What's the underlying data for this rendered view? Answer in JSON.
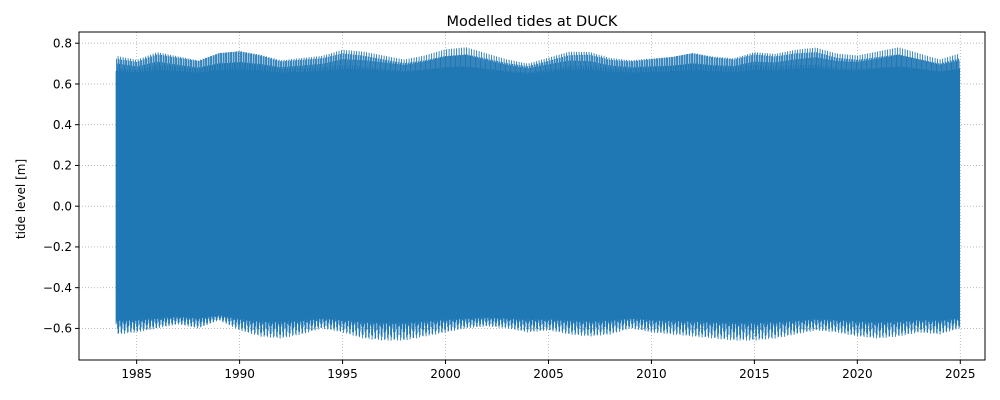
{
  "chart_data": {
    "type": "line",
    "title": "Modelled tides at DUCK",
    "xlabel": "",
    "ylabel": "tide level [m]",
    "xlim": [
      1982.2,
      2026.2
    ],
    "ylim": [
      -0.755,
      0.855
    ],
    "x_ticks": [
      1985,
      1990,
      1995,
      2000,
      2005,
      2010,
      2015,
      2020,
      2025
    ],
    "y_ticks": [
      -0.6,
      -0.4,
      -0.2,
      0.0,
      0.2,
      0.4,
      0.6,
      0.8
    ],
    "y_tick_labels": [
      "−0.6",
      "−0.4",
      "−0.2",
      "0.0",
      "0.2",
      "0.4",
      "0.6",
      "0.8"
    ],
    "grid": true,
    "series": [
      {
        "color": "#1f77b4",
        "x_start": 1984.0,
        "x_end": 2024.97,
        "envelope_x": [
          1984.0,
          1985.0,
          1986.0,
          1987.0,
          1988.0,
          1989.0,
          1990.0,
          1991.0,
          1992.0,
          1993.0,
          1994.0,
          1995.0,
          1996.0,
          1997.0,
          1998.0,
          1999.0,
          2000.0,
          2001.0,
          2002.0,
          2003.0,
          2004.0,
          2005.0,
          2006.0,
          2007.0,
          2008.0,
          2009.0,
          2010.0,
          2011.0,
          2012.0,
          2013.0,
          2014.0,
          2015.0,
          2016.0,
          2017.0,
          2018.0,
          2019.0,
          2020.0,
          2021.0,
          2022.0,
          2023.0,
          2024.0,
          2024.97
        ],
        "upper_y": [
          0.74,
          0.72,
          0.76,
          0.74,
          0.72,
          0.76,
          0.77,
          0.75,
          0.72,
          0.73,
          0.74,
          0.77,
          0.76,
          0.74,
          0.72,
          0.74,
          0.77,
          0.78,
          0.75,
          0.72,
          0.7,
          0.73,
          0.76,
          0.76,
          0.73,
          0.72,
          0.73,
          0.74,
          0.76,
          0.74,
          0.73,
          0.76,
          0.75,
          0.77,
          0.78,
          0.75,
          0.74,
          0.76,
          0.78,
          0.75,
          0.72,
          0.75
        ],
        "lower_y": [
          -0.63,
          -0.62,
          -0.6,
          -0.58,
          -0.6,
          -0.56,
          -0.61,
          -0.64,
          -0.65,
          -0.63,
          -0.6,
          -0.62,
          -0.65,
          -0.66,
          -0.66,
          -0.64,
          -0.62,
          -0.6,
          -0.59,
          -0.6,
          -0.62,
          -0.61,
          -0.63,
          -0.64,
          -0.63,
          -0.6,
          -0.62,
          -0.63,
          -0.64,
          -0.65,
          -0.66,
          -0.66,
          -0.65,
          -0.63,
          -0.61,
          -0.62,
          -0.64,
          -0.65,
          -0.64,
          -0.62,
          -0.63,
          -0.6
        ]
      }
    ]
  }
}
